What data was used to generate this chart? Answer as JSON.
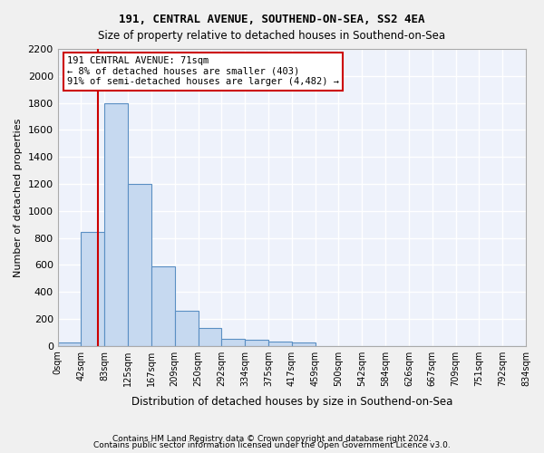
{
  "title1": "191, CENTRAL AVENUE, SOUTHEND-ON-SEA, SS2 4EA",
  "title2": "Size of property relative to detached houses in Southend-on-Sea",
  "xlabel": "Distribution of detached houses by size in Southend-on-Sea",
  "ylabel": "Number of detached properties",
  "footer1": "Contains HM Land Registry data © Crown copyright and database right 2024.",
  "footer2": "Contains public sector information licensed under the Open Government Licence v3.0.",
  "bin_labels": [
    "0sqm",
    "42sqm",
    "83sqm",
    "125sqm",
    "167sqm",
    "209sqm",
    "250sqm",
    "292sqm",
    "334sqm",
    "375sqm",
    "417sqm",
    "459sqm",
    "500sqm",
    "542sqm",
    "584sqm",
    "626sqm",
    "667sqm",
    "709sqm",
    "751sqm",
    "792sqm",
    "834sqm"
  ],
  "bar_values": [
    25,
    845,
    1800,
    1200,
    590,
    260,
    130,
    50,
    45,
    32,
    22,
    0,
    0,
    0,
    0,
    0,
    0,
    0,
    0,
    0
  ],
  "bar_color": "#c6d9f0",
  "bar_edge_color": "#5a8fc3",
  "background_color": "#eef2fb",
  "grid_color": "#ffffff",
  "property_sqm": 71,
  "annotation_text1": "191 CENTRAL AVENUE: 71sqm",
  "annotation_text2": "← 8% of detached houses are smaller (403)",
  "annotation_text3": "91% of semi-detached houses are larger (4,482) →",
  "annotation_box_color": "#ffffff",
  "annotation_border_color": "#cc0000",
  "ylim": [
    0,
    2200
  ],
  "yticks": [
    0,
    200,
    400,
    600,
    800,
    1000,
    1200,
    1400,
    1600,
    1800,
    2000,
    2200
  ],
  "bin_edges": [
    0,
    42,
    83,
    125,
    167,
    209,
    250,
    292,
    334,
    375,
    417,
    459,
    500,
    542,
    584,
    626,
    667,
    709,
    751,
    792,
    834
  ]
}
